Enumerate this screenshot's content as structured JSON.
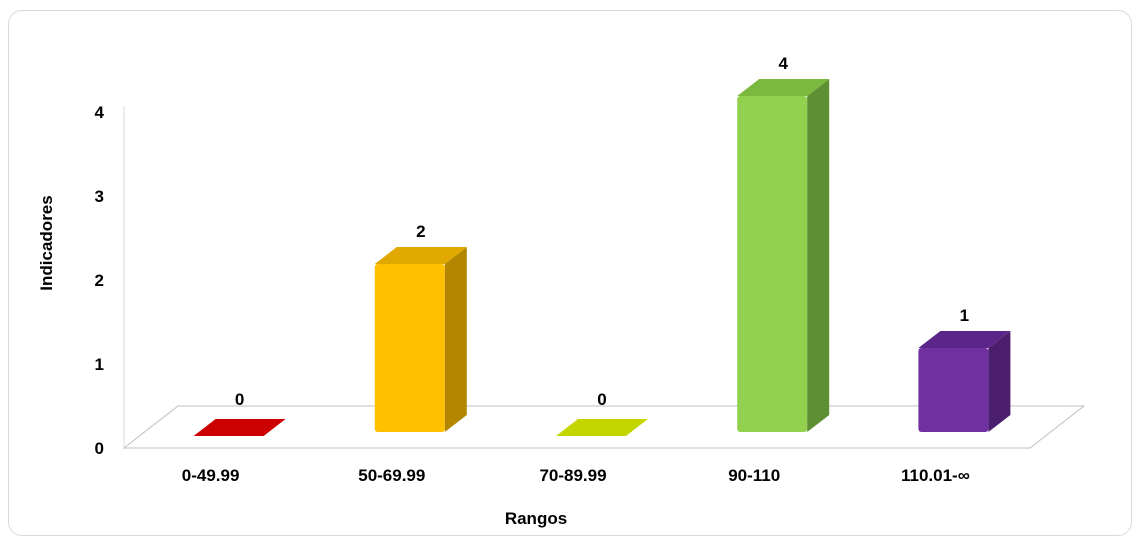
{
  "chart_data": {
    "type": "bar",
    "title": "",
    "xlabel": "Rangos",
    "ylabel": "Indicadores",
    "categories": [
      "0-49.99",
      "50-69.99",
      "70-89.99",
      "90-110",
      "110.01-∞"
    ],
    "values": [
      0,
      2,
      0,
      4,
      1
    ],
    "data_labels": [
      "0",
      "2",
      "0",
      "4",
      "1"
    ],
    "y_ticks": [
      "0",
      "1",
      "2",
      "3",
      "4"
    ],
    "ylim": [
      0,
      4
    ],
    "grid": false,
    "legend": "none",
    "colors": [
      "#cc0000",
      "#ffc000",
      "#c4d600",
      "#92d050",
      "#7030a0"
    ],
    "side_colors": [
      "#8f0000",
      "#b38600",
      "#8a9600",
      "#5e8f32",
      "#4b1f6e"
    ],
    "top_colors": [
      "#e03030",
      "#e0a800",
      "#b3c400",
      "#7ab83e",
      "#5c2589"
    ]
  }
}
